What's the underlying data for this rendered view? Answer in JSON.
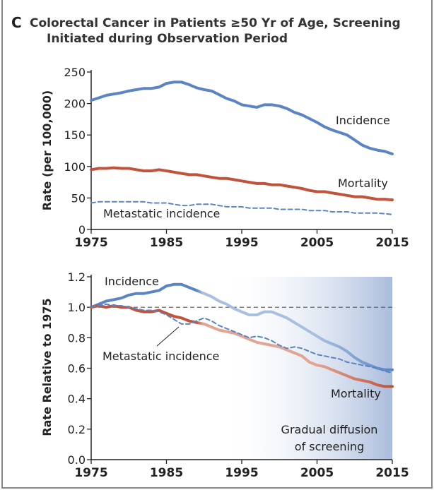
{
  "panel_letter": "C",
  "title_line1": "Colorectal Cancer in Patients ≥50 Yr of Age, Screening",
  "title_line2": "Initiated during Observation Period",
  "colors": {
    "incidence": "#5b84c4",
    "incidence_faded": "#a9bfe2",
    "mortality": "#c0533a",
    "mortality_faded": "#e2a592",
    "metastatic": "#5b84c4",
    "shade": "#a9bcdc"
  },
  "chart_data": [
    {
      "type": "line",
      "title": "",
      "xlabel": "",
      "ylabel": "Rate (per 100,000)",
      "xlim": [
        1975,
        2015
      ],
      "ylim": [
        0,
        250
      ],
      "xticks": [
        "1975",
        "1985",
        "1995",
        "2005",
        "2015"
      ],
      "yticks": [
        "0",
        "50",
        "100",
        "150",
        "200",
        "250"
      ],
      "x_start": 1975,
      "series": [
        {
          "name": "Incidence",
          "style": "solid",
          "values": [
            205,
            209,
            213,
            215,
            217,
            220,
            222,
            224,
            224,
            226,
            232,
            234,
            234,
            230,
            225,
            222,
            220,
            214,
            208,
            204,
            198,
            196,
            194,
            198,
            198,
            196,
            192,
            186,
            182,
            176,
            170,
            163,
            158,
            154,
            150,
            142,
            134,
            129,
            126,
            124,
            120
          ]
        },
        {
          "name": "Mortality",
          "style": "solid",
          "values": [
            95,
            97,
            97,
            98,
            97,
            97,
            95,
            93,
            93,
            95,
            93,
            91,
            89,
            87,
            87,
            85,
            83,
            81,
            81,
            79,
            77,
            75,
            73,
            73,
            71,
            71,
            69,
            67,
            65,
            62,
            60,
            60,
            58,
            56,
            54,
            52,
            52,
            50,
            48,
            48,
            47
          ]
        },
        {
          "name": "Metastatic incidence",
          "style": "dashed",
          "values": [
            42,
            44,
            44,
            44,
            44,
            44,
            44,
            44,
            42,
            42,
            42,
            40,
            38,
            38,
            40,
            40,
            40,
            38,
            36,
            36,
            36,
            34,
            34,
            34,
            34,
            32,
            32,
            32,
            32,
            30,
            30,
            30,
            28,
            28,
            28,
            26,
            26,
            26,
            26,
            25,
            24
          ]
        }
      ]
    },
    {
      "type": "line",
      "title": "",
      "xlabel": "",
      "ylabel": "Rate Relative to 1975",
      "xlim": [
        1975,
        2015
      ],
      "ylim": [
        0.0,
        1.2
      ],
      "xticks": [
        "1975",
        "1985",
        "1995",
        "2005",
        "2015"
      ],
      "yticks": [
        "0.0",
        "0.2",
        "0.4",
        "0.6",
        "0.8",
        "1.0",
        "1.2"
      ],
      "reference_line": 1.0,
      "x_start": 1975,
      "fade_start_year": 1989,
      "shaded_region": [
        1992,
        2015
      ],
      "annotation": [
        "Gradual diffusion",
        "of screening"
      ],
      "series": [
        {
          "name": "Incidence",
          "style": "solid",
          "values": [
            1.0,
            1.02,
            1.04,
            1.05,
            1.06,
            1.08,
            1.09,
            1.09,
            1.1,
            1.11,
            1.14,
            1.15,
            1.15,
            1.13,
            1.11,
            1.09,
            1.07,
            1.04,
            1.02,
            0.99,
            0.97,
            0.95,
            0.95,
            0.97,
            0.97,
            0.95,
            0.93,
            0.9,
            0.87,
            0.84,
            0.81,
            0.78,
            0.76,
            0.74,
            0.71,
            0.67,
            0.64,
            0.62,
            0.6,
            0.59,
            0.59
          ]
        },
        {
          "name": "Mortality",
          "style": "solid",
          "values": [
            1.0,
            1.01,
            1.0,
            1.01,
            1.0,
            1.0,
            0.98,
            0.97,
            0.97,
            0.98,
            0.96,
            0.94,
            0.93,
            0.91,
            0.9,
            0.89,
            0.87,
            0.85,
            0.84,
            0.83,
            0.81,
            0.79,
            0.77,
            0.76,
            0.75,
            0.74,
            0.72,
            0.7,
            0.68,
            0.64,
            0.62,
            0.61,
            0.59,
            0.57,
            0.55,
            0.53,
            0.52,
            0.51,
            0.49,
            0.48,
            0.48
          ]
        },
        {
          "name": "Metastatic incidence",
          "style": "dashed",
          "values": [
            1.0,
            1.01,
            1.02,
            1.01,
            1.01,
            1.0,
            0.99,
            0.98,
            0.98,
            0.97,
            0.95,
            0.92,
            0.89,
            0.89,
            0.91,
            0.93,
            0.91,
            0.88,
            0.86,
            0.84,
            0.82,
            0.8,
            0.81,
            0.8,
            0.78,
            0.75,
            0.73,
            0.74,
            0.73,
            0.71,
            0.69,
            0.68,
            0.67,
            0.66,
            0.64,
            0.63,
            0.62,
            0.61,
            0.6,
            0.58,
            0.57
          ]
        }
      ]
    }
  ]
}
